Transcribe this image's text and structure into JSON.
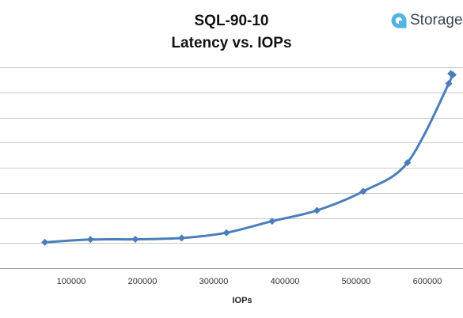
{
  "logo": {
    "text": "Storage",
    "color": "#55b3e3"
  },
  "chart_data": {
    "type": "line",
    "title": "SQL-90-10",
    "subtitle": "Latency vs. IOPs",
    "xlabel": "IOPs",
    "ylabel": "",
    "xlim": [
      0,
      650000
    ],
    "xticks": [
      100000,
      200000,
      300000,
      400000,
      500000,
      600000
    ],
    "ylim": [
      0,
      8
    ],
    "yticks": [
      0,
      1,
      2,
      3,
      4,
      5,
      6,
      7,
      8
    ],
    "y_tick_labels_visible": false,
    "grid": {
      "horizontal": true,
      "vertical": false
    },
    "legend": "none",
    "line_color": "#4a7ebb",
    "series": [
      {
        "name": "",
        "x": [
          63000,
          127000,
          190000,
          255000,
          318000,
          382000,
          445000,
          510000,
          572000,
          630000,
          633000,
          636000
        ],
        "y": [
          1.03,
          1.14,
          1.15,
          1.2,
          1.41,
          1.87,
          2.3,
          3.06,
          4.2,
          7.35,
          7.75,
          7.7
        ]
      }
    ]
  }
}
